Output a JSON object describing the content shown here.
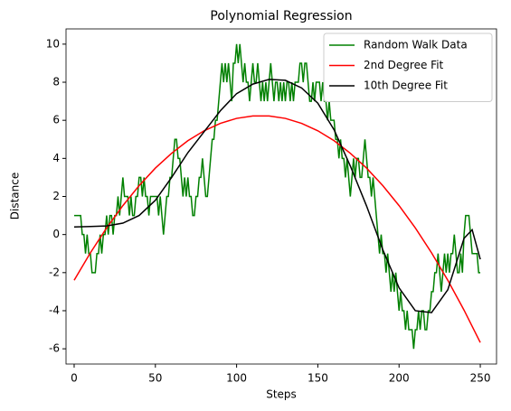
{
  "chart_data": {
    "type": "line",
    "title": "Polynomial Regression",
    "xlabel": "Steps",
    "ylabel": "Distance",
    "xlim": [
      -5,
      260
    ],
    "ylim": [
      -6.8,
      10.8
    ],
    "xticks": [
      0,
      50,
      100,
      150,
      200,
      250
    ],
    "yticks": [
      -6,
      -4,
      -2,
      0,
      2,
      4,
      6,
      8,
      10
    ],
    "legend": "upper right",
    "grid": false,
    "series": [
      {
        "name": "Random Walk Data",
        "color": "#008000",
        "x": [
          0,
          1,
          2,
          3,
          4,
          5,
          6,
          7,
          8,
          9,
          10,
          11,
          12,
          13,
          14,
          15,
          16,
          17,
          18,
          19,
          20,
          21,
          22,
          23,
          24,
          25,
          26,
          27,
          28,
          29,
          30,
          31,
          32,
          33,
          34,
          35,
          36,
          37,
          38,
          39,
          40,
          41,
          42,
          43,
          44,
          45,
          46,
          47,
          48,
          49,
          50,
          51,
          52,
          53,
          54,
          55,
          56,
          57,
          58,
          59,
          60,
          61,
          62,
          63,
          64,
          65,
          66,
          67,
          68,
          69,
          70,
          71,
          72,
          73,
          74,
          75,
          76,
          77,
          78,
          79,
          80,
          81,
          82,
          83,
          84,
          85,
          86,
          87,
          88,
          89,
          90,
          91,
          92,
          93,
          94,
          95,
          96,
          97,
          98,
          99,
          100,
          101,
          102,
          103,
          104,
          105,
          106,
          107,
          108,
          109,
          110,
          111,
          112,
          113,
          114,
          115,
          116,
          117,
          118,
          119,
          120,
          121,
          122,
          123,
          124,
          125,
          126,
          127,
          128,
          129,
          130,
          131,
          132,
          133,
          134,
          135,
          136,
          137,
          138,
          139,
          140,
          141,
          142,
          143,
          144,
          145,
          146,
          147,
          148,
          149,
          150,
          151,
          152,
          153,
          154,
          155,
          156,
          157,
          158,
          159,
          160,
          161,
          162,
          163,
          164,
          165,
          166,
          167,
          168,
          169,
          170,
          171,
          172,
          173,
          174,
          175,
          176,
          177,
          178,
          179,
          180,
          181,
          182,
          183,
          184,
          185,
          186,
          187,
          188,
          189,
          190,
          191,
          192,
          193,
          194,
          195,
          196,
          197,
          198,
          199,
          200,
          201,
          202,
          203,
          204,
          205,
          206,
          207,
          208,
          209,
          210,
          211,
          212,
          213,
          214,
          215,
          216,
          217,
          218,
          219,
          220,
          221,
          222,
          223,
          224,
          225,
          226,
          227,
          228,
          229,
          230,
          231,
          232,
          233,
          234,
          235,
          236,
          237,
          238,
          239,
          240,
          241,
          242,
          243,
          244,
          245,
          246,
          247,
          248,
          249,
          250
        ],
        "values": [
          1,
          1,
          1,
          1,
          1,
          0,
          0,
          -1,
          0,
          -1,
          -1,
          -2,
          -2,
          -2,
          -1,
          -1,
          0,
          -1,
          0,
          0,
          1,
          0,
          1,
          1,
          0,
          1,
          1,
          2,
          1,
          2,
          3,
          2,
          2,
          2,
          1,
          2,
          1,
          1,
          2,
          2,
          3,
          3,
          2,
          3,
          2,
          2,
          1,
          2,
          2,
          2,
          2,
          2,
          1,
          2,
          1,
          0,
          1,
          2,
          2,
          3,
          3,
          4,
          5,
          5,
          4,
          4,
          3,
          2,
          3,
          2,
          3,
          2,
          2,
          1,
          1,
          2,
          2,
          3,
          3,
          4,
          3,
          2,
          2,
          3,
          4,
          5,
          5,
          6,
          6,
          7,
          8,
          9,
          8,
          9,
          8,
          9,
          8,
          7,
          9,
          9,
          10,
          9,
          10,
          9,
          8,
          9,
          8,
          8,
          7,
          8,
          9,
          8,
          8,
          9,
          8,
          7,
          8,
          7,
          8,
          7,
          8,
          9,
          8,
          7,
          8,
          8,
          7,
          8,
          7,
          8,
          7,
          8,
          8,
          7,
          8,
          7,
          8,
          8,
          8,
          9,
          9,
          8,
          9,
          9,
          8,
          7,
          7,
          8,
          7,
          8,
          8,
          8,
          7,
          8,
          7,
          7,
          6,
          7,
          6,
          6,
          6,
          5,
          5,
          4,
          5,
          4,
          4,
          3,
          4,
          3,
          2,
          3,
          4,
          3,
          4,
          4,
          3,
          3,
          4,
          5,
          4,
          3,
          3,
          2,
          3,
          2,
          1,
          0,
          -1,
          0,
          -1,
          -1,
          -2,
          -1,
          -2,
          -3,
          -2,
          -3,
          -2,
          -3,
          -4,
          -3,
          -4,
          -4,
          -5,
          -4,
          -5,
          -5,
          -5,
          -6,
          -5,
          -5,
          -4,
          -5,
          -4,
          -4,
          -5,
          -5,
          -4,
          -4,
          -3,
          -3,
          -2,
          -2,
          -1,
          -2,
          -3,
          -2,
          -1,
          -2,
          -1,
          -2,
          -1,
          -1,
          0,
          -1,
          -2,
          -2,
          -1,
          -2,
          0,
          1,
          1,
          1,
          0,
          -1,
          -1,
          -1,
          -1,
          -2,
          -2
        ]
      },
      {
        "name": "2nd Degree Fit",
        "color": "#ff0000",
        "x": [
          0,
          10,
          20,
          30,
          40,
          50,
          60,
          70,
          80,
          90,
          100,
          110,
          120,
          130,
          140,
          150,
          160,
          170,
          180,
          190,
          200,
          210,
          220,
          230,
          240,
          250
        ],
        "values": [
          -2.4,
          -0.96,
          0.35,
          1.52,
          2.57,
          3.49,
          4.27,
          4.93,
          5.45,
          5.84,
          6.1,
          6.23,
          6.23,
          6.1,
          5.84,
          5.45,
          4.93,
          4.27,
          3.49,
          2.57,
          1.52,
          0.35,
          -0.96,
          -2.4,
          -3.97,
          -5.67
        ]
      },
      {
        "name": "10th Degree Fit",
        "color": "#000000",
        "x": [
          0,
          10,
          20,
          30,
          40,
          50,
          60,
          70,
          80,
          90,
          100,
          110,
          120,
          130,
          140,
          150,
          160,
          170,
          180,
          190,
          200,
          210,
          220,
          230,
          240,
          245,
          250
        ],
        "values": [
          0.4,
          0.42,
          0.45,
          0.6,
          1.0,
          1.8,
          3.0,
          4.3,
          5.4,
          6.5,
          7.4,
          7.9,
          8.15,
          8.1,
          7.7,
          6.9,
          5.5,
          3.6,
          1.5,
          -0.8,
          -2.8,
          -4.0,
          -4.1,
          -2.9,
          -0.2,
          0.25,
          -1.3
        ]
      }
    ]
  }
}
